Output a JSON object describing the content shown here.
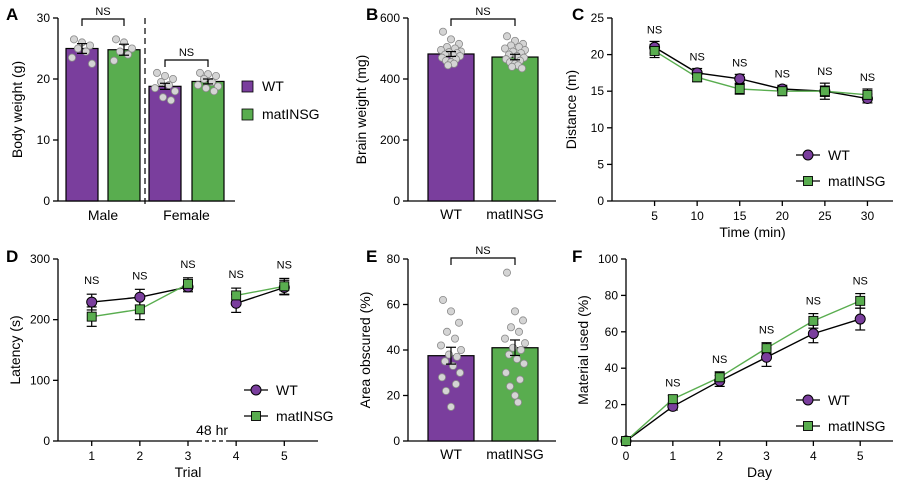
{
  "colors": {
    "wt": "#7a3e9d",
    "matinsg": "#59ad4f",
    "dot": "#d4d4d4",
    "ink": "#000000"
  },
  "chart_data": [
    {
      "panel": "A",
      "type": "bar",
      "ylabel": "Body weight (g)",
      "ylim": [
        0,
        30
      ],
      "yticks": [
        0,
        10,
        20,
        30
      ],
      "groups": [
        "Male",
        "Female"
      ],
      "series_labels": [
        "WT",
        "matINSG"
      ],
      "values": [
        [
          25.0,
          24.8
        ],
        [
          18.8,
          19.6
        ]
      ],
      "errors": [
        [
          0.8,
          0.9
        ],
        [
          0.5,
          0.4
        ]
      ],
      "points": [
        [
          [
            26.5,
            26.0,
            25.5,
            25.0,
            24.5,
            23.5,
            22.5
          ],
          [
            26.5,
            26.0,
            25.0,
            24.5,
            24.0,
            23.0
          ]
        ],
        [
          [
            21.0,
            20.5,
            20.0,
            19.5,
            19.0,
            18.5,
            18.0,
            17.0,
            16.5
          ],
          [
            21.0,
            20.8,
            20.5,
            20.0,
            19.5,
            19.0,
            18.8,
            18.5,
            18.0
          ]
        ]
      ],
      "ns": [
        "NS",
        "NS"
      ],
      "legend": [
        "WT",
        "matINSG"
      ]
    },
    {
      "panel": "B",
      "type": "bar",
      "ylabel": "Brain weight (mg)",
      "ylim": [
        0,
        600
      ],
      "yticks": [
        0,
        200,
        400,
        600
      ],
      "categories": [
        "WT",
        "matINSG"
      ],
      "values": [
        482,
        472
      ],
      "errors": [
        8,
        9
      ],
      "points": [
        [
          555,
          530,
          515,
          505,
          500,
          495,
          490,
          488,
          485,
          480,
          478,
          475,
          470,
          465,
          460,
          455,
          450,
          445
        ],
        [
          540,
          525,
          515,
          510,
          505,
          500,
          495,
          490,
          485,
          480,
          475,
          470,
          465,
          460,
          455,
          450,
          445,
          440,
          435
        ]
      ],
      "ns": "NS"
    },
    {
      "panel": "C",
      "type": "line",
      "xlabel": "Time (min)",
      "ylabel": "Distance (m)",
      "x": [
        5,
        10,
        15,
        20,
        25,
        30
      ],
      "xlim": [
        0,
        33
      ],
      "ylim": [
        0,
        25
      ],
      "yticks": [
        0,
        5,
        10,
        15,
        20,
        25
      ],
      "series": [
        {
          "name": "WT",
          "values": [
            21.0,
            17.5,
            16.7,
            15.3,
            15.0,
            14.0
          ],
          "errors": [
            0.8,
            0.6,
            0.6,
            0.5,
            0.7,
            0.6
          ]
        },
        {
          "name": "matINSG",
          "values": [
            20.5,
            16.9,
            15.3,
            15.0,
            15.0,
            14.5
          ],
          "errors": [
            0.9,
            0.6,
            0.7,
            0.6,
            1.1,
            0.8
          ]
        }
      ],
      "ns": "NS",
      "legend_position": "bottom-right"
    },
    {
      "panel": "D",
      "type": "line",
      "xlabel": "Trial",
      "ylabel": "Latency (s)",
      "x": [
        1,
        2,
        3,
        4,
        5
      ],
      "xlim": [
        0.3,
        5.7
      ],
      "ylim": [
        0,
        300
      ],
      "yticks": [
        0,
        100,
        200,
        300
      ],
      "series": [
        {
          "name": "WT",
          "values": [
            229,
            237,
            254,
            227,
            253
          ],
          "errors": [
            13,
            13,
            8,
            15,
            12
          ]
        },
        {
          "name": "matINSG",
          "values": [
            205,
            217,
            259,
            240,
            255
          ],
          "errors": [
            16,
            17,
            10,
            12,
            13
          ]
        }
      ],
      "ns": "NS",
      "break_label": "48 hr",
      "legend_position": "bottom-right"
    },
    {
      "panel": "E",
      "type": "bar",
      "ylabel": "Area obscured (%)",
      "ylim": [
        0,
        80
      ],
      "yticks": [
        0,
        20,
        40,
        60,
        80
      ],
      "categories": [
        "WT",
        "matINSG"
      ],
      "values": [
        37.5,
        41.0
      ],
      "errors": [
        3.7,
        3.4
      ],
      "points": [
        [
          62,
          57,
          52,
          48,
          45,
          42,
          40,
          38,
          37,
          35,
          33,
          30,
          28,
          25,
          22,
          15
        ],
        [
          74,
          57,
          53,
          50,
          48,
          45,
          43,
          41,
          40,
          38,
          36,
          34,
          30,
          27,
          24,
          20,
          17
        ]
      ],
      "ns": "NS"
    },
    {
      "panel": "F",
      "type": "line",
      "xlabel": "Day",
      "ylabel": "Material used (%)",
      "x": [
        0,
        1,
        2,
        3,
        4,
        5
      ],
      "xlim": [
        0,
        5.7
      ],
      "ylim": [
        0,
        100
      ],
      "yticks": [
        0,
        20,
        40,
        60,
        80,
        100
      ],
      "series": [
        {
          "name": "WT",
          "values": [
            0,
            19,
            33,
            46,
            59,
            67
          ],
          "errors": [
            0,
            2,
            3,
            5,
            5,
            6
          ]
        },
        {
          "name": "matINSG",
          "values": [
            0,
            23,
            35,
            51,
            66,
            77
          ],
          "errors": [
            0,
            2,
            3,
            3,
            4,
            4
          ]
        }
      ],
      "ns": "NS",
      "legend_position": "bottom-right"
    }
  ]
}
